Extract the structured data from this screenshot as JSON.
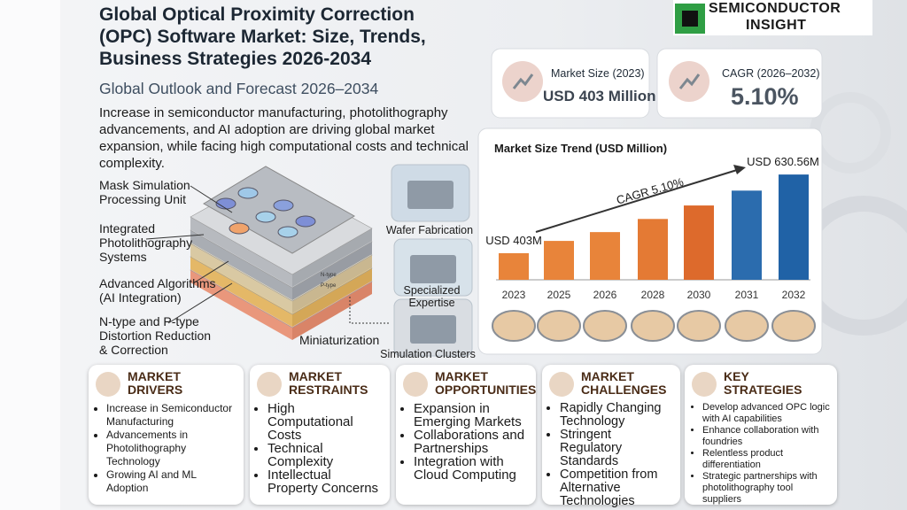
{
  "header": {
    "title": "Global Optical Proximity Correction (OPC) Software Market: Size, Trends, Business Strategies 2026-2034",
    "subtitle": "Global Outlook and Forecast 2026–2034",
    "description": "Increase in semiconductor manufacturing, photolithography advancements, and AI adoption are driving global market expansion, while facing high computational costs and technical complexity."
  },
  "logo": {
    "lines": [
      "SEMICONDUCTOR",
      "INSIGHT"
    ]
  },
  "stats": [
    {
      "label": "Market Size (2023)",
      "value": "USD 403 Million"
    },
    {
      "label": "CAGR (2026–2032)",
      "value": "5.10%"
    }
  ],
  "chart_data": {
    "type": "bar",
    "title": "Market Size Trend (USD Million)",
    "categories": [
      "2023",
      "2025",
      "2026",
      "2028",
      "2030",
      "2031",
      "2032"
    ],
    "values": [
      403,
      438.5,
      464,
      502,
      541,
      584,
      630.56
    ],
    "value_labels": [
      "USD 403M",
      null,
      null,
      null,
      null,
      null,
      "USD 630.56M"
    ],
    "colors": [
      "#e8843a",
      "#e8843a",
      "#e8843a",
      "#e47a34",
      "#dd6a2c",
      "#2b6cae",
      "#2062a6"
    ],
    "ylim": [
      326,
      700
    ],
    "annotation": "CAGR 5.10%",
    "grid": false
  },
  "diagram": {
    "labels": [
      "Mask Simulation Processing Unit",
      "Integrated Photolithography Systems",
      "Advanced Algorithms (AI Integration)",
      "N-type and P-type Distortion Reduction & Correction",
      "Miniaturization"
    ],
    "chip_labels": [
      "N-type",
      "P-type"
    ],
    "images": [
      "Wafer Fabrication",
      "Specialized Expertise",
      "Simulation Clusters"
    ]
  },
  "cards": [
    {
      "title": "MARKET DRIVERS",
      "items": [
        "Increase in Semiconductor Manufacturing",
        "Advancements in Photolithography Technology",
        "Growing AI and ML Adoption"
      ]
    },
    {
      "title": "MARKET RESTRAINTS",
      "items": [
        "High Computational Costs",
        "Technical Complexity",
        "Intellectual Property Concerns"
      ]
    },
    {
      "title": "MARKET OPPORTUNITIES",
      "items": [
        "Expansion in Emerging Markets",
        "Collaborations and Partnerships",
        "Integration with Cloud Computing"
      ]
    },
    {
      "title": "MARKET CHALLENGES",
      "items": [
        "Rapidly Changing Technology",
        "Stringent Regulatory Standards",
        "Competition from Alternative Technologies"
      ]
    },
    {
      "title": "KEY STRATEGIES",
      "items": [
        "Develop advanced OPC logic with AI capabilities",
        "Enhance collaboration with foundries",
        "Relentless product differentiation",
        "Strategic partnerships with photolithography tool suppliers"
      ]
    }
  ]
}
